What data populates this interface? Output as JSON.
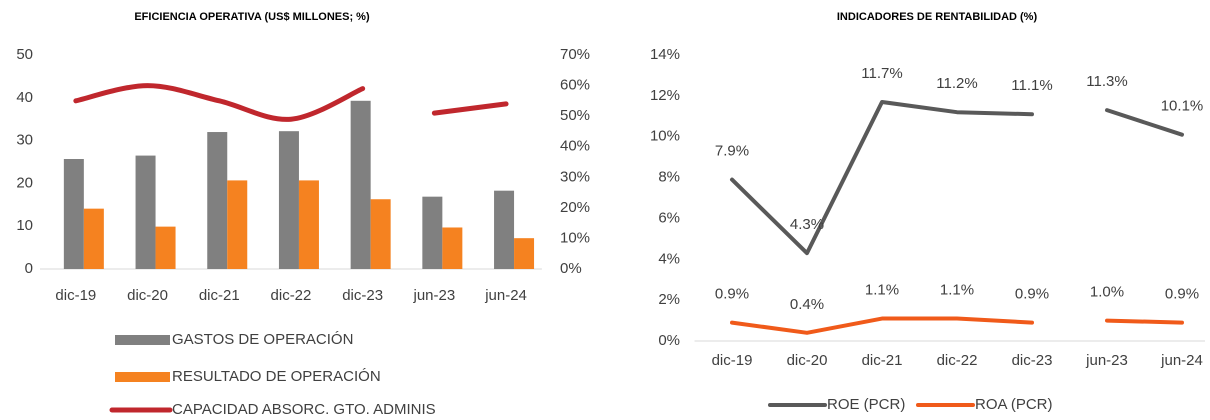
{
  "chart_data": [
    {
      "type": "bar",
      "title": "EFICIENCIA OPERATIVA (US$ MILLONES; %)",
      "categories": [
        "dic-19",
        "dic-20",
        "dic-21",
        "dic-22",
        "dic-23",
        "jun-23",
        "jun-24"
      ],
      "series": [
        {
          "name": "GASTOS DE OPERACIÓN",
          "color": "#808080",
          "values": [
            25.7,
            26.5,
            32,
            32.2,
            39.3,
            16.9,
            18.3
          ]
        },
        {
          "name": "RESULTADO DE OPERACIÓN",
          "color": "#f58220",
          "values": [
            14.1,
            9.9,
            20.7,
            20.7,
            16.3,
            9.7,
            7.2
          ]
        },
        {
          "name": "CAPACIDAD ABSORC. GTO. ADMINIS",
          "color": "#c0272d",
          "type": "line",
          "axis": "y2",
          "values": [
            55,
            60,
            55,
            49,
            59,
            51,
            54
          ]
        }
      ],
      "break_after": 4,
      "ylim": [
        0,
        50
      ],
      "yticks": [
        0,
        10,
        20,
        30,
        40,
        50
      ],
      "y2lim": [
        0,
        70
      ],
      "y2ticks": [
        {
          "value": 0,
          "label": "0%"
        },
        {
          "value": 10,
          "label": "10%"
        },
        {
          "value": 20,
          "label": "20%"
        },
        {
          "value": 30,
          "label": "30%"
        },
        {
          "value": 40,
          "label": "40%"
        },
        {
          "value": 50,
          "label": "50%"
        },
        {
          "value": 60,
          "label": "60%"
        },
        {
          "value": 70,
          "label": "70%"
        }
      ],
      "legend": "bottom"
    },
    {
      "type": "line",
      "title": "INDICADORES DE RENTABILIDAD (%)",
      "categories": [
        "dic-19",
        "dic-20",
        "dic-21",
        "dic-22",
        "dic-23",
        "jun-23",
        "jun-24"
      ],
      "series": [
        {
          "name": "ROE (PCR)",
          "color": "#595959",
          "values": [
            7.9,
            4.3,
            11.7,
            11.2,
            11.1,
            11.3,
            10.1
          ],
          "value_labels": [
            "7.9%",
            "4.3%",
            "11.7%",
            "11.2%",
            "11.1%",
            "11.3%",
            "10.1%"
          ]
        },
        {
          "name": "ROA (PCR)",
          "color": "#f05a1a",
          "values": [
            0.9,
            0.4,
            1.1,
            1.1,
            0.9,
            1.0,
            0.9
          ],
          "value_labels": [
            "0.9%",
            "0.4%",
            "1.1%",
            "1.1%",
            "0.9%",
            "1.0%",
            "0.9%"
          ]
        }
      ],
      "break_after": 4,
      "ylim": [
        0,
        14
      ],
      "yticks": [
        {
          "value": 0,
          "label": "0%"
        },
        {
          "value": 2,
          "label": "2%"
        },
        {
          "value": 4,
          "label": "4%"
        },
        {
          "value": 6,
          "label": "6%"
        },
        {
          "value": 8,
          "label": "8%"
        },
        {
          "value": 10,
          "label": "10%"
        },
        {
          "value": 12,
          "label": "12%"
        },
        {
          "value": 14,
          "label": "14%"
        }
      ],
      "legend": "bottom"
    }
  ]
}
